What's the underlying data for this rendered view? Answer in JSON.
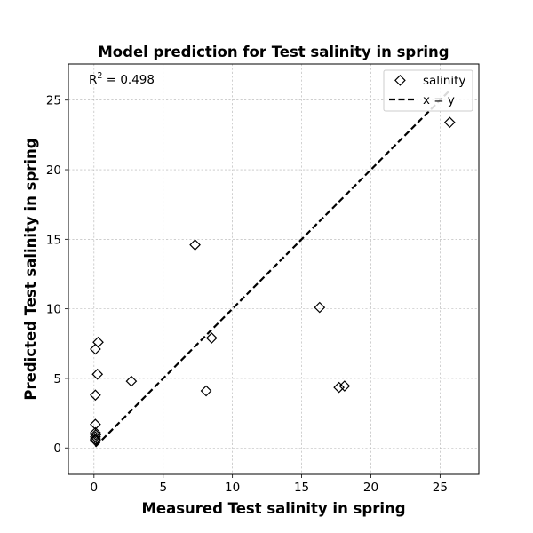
{
  "chart_data": {
    "type": "scatter",
    "title": "Model prediction for Test salinity in spring",
    "xlabel": "Measured Test salinity in spring",
    "ylabel": "Predicted Test salinity in spring",
    "xlim": [
      -1.85,
      27.8
    ],
    "ylim": [
      -1.9,
      27.6
    ],
    "xticks": [
      0,
      5,
      10,
      15,
      20,
      25
    ],
    "yticks": [
      0,
      5,
      10,
      15,
      20,
      25
    ],
    "grid": true,
    "legend_position": "top-right",
    "annotation": {
      "prefix": "R",
      "sup": "2",
      "text": " = 0.498"
    },
    "series": [
      {
        "name": "salinity",
        "marker": "diamond",
        "color": "#000000",
        "points": [
          {
            "x": 0.1,
            "y": 0.55
          },
          {
            "x": 0.1,
            "y": 0.65
          },
          {
            "x": 0.1,
            "y": 0.8
          },
          {
            "x": 0.12,
            "y": 0.95
          },
          {
            "x": 0.1,
            "y": 1.1
          },
          {
            "x": 0.1,
            "y": 1.7
          },
          {
            "x": 0.1,
            "y": 3.8
          },
          {
            "x": 0.25,
            "y": 5.3
          },
          {
            "x": 0.1,
            "y": 7.1
          },
          {
            "x": 0.3,
            "y": 7.6
          },
          {
            "x": 2.7,
            "y": 4.8
          },
          {
            "x": 7.3,
            "y": 14.6
          },
          {
            "x": 8.1,
            "y": 4.1
          },
          {
            "x": 8.5,
            "y": 7.9
          },
          {
            "x": 16.3,
            "y": 10.1
          },
          {
            "x": 17.7,
            "y": 4.35
          },
          {
            "x": 18.1,
            "y": 4.45
          },
          {
            "x": 25.7,
            "y": 23.4
          }
        ]
      },
      {
        "name": "x = y",
        "style": "dashed",
        "color": "#000000",
        "points": [
          {
            "x": 0.1,
            "y": 0.1
          },
          {
            "x": 25.7,
            "y": 25.7
          }
        ]
      }
    ]
  }
}
